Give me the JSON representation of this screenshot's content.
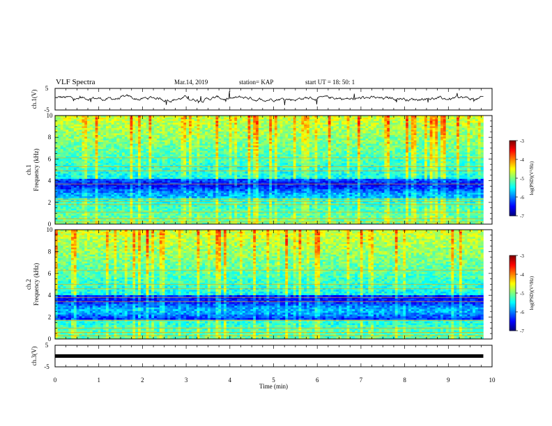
{
  "header": {
    "title": "VLF Spectra",
    "date": "Mar.14, 2019",
    "station": "station= KAP",
    "start": "start  UT =   18: 50: 1"
  },
  "chart_data": [
    {
      "id": "ch1-waveform",
      "type": "line",
      "ylabel": "ch.1(V)",
      "ylim": [
        -5,
        5
      ],
      "yticks": [
        5,
        -5
      ],
      "xlim": [
        0,
        10
      ],
      "x_range_data": [
        0,
        9.8
      ],
      "description_values": {
        "mean": 0.3,
        "typical_range": [
          -1.5,
          1.5
        ]
      }
    },
    {
      "id": "ch1-spectrogram",
      "type": "heatmap",
      "ylabel": "ch.1",
      "ylabel2": "Frequency  (kHz)",
      "ylim": [
        0,
        10
      ],
      "yticks": [
        0,
        2,
        4,
        6,
        8,
        10
      ],
      "xlim": [
        0,
        10
      ],
      "x_range_data": [
        0,
        9.8
      ],
      "colorbar": {
        "label": "log(PSD)(V²/Hz)",
        "range": [
          -7,
          -3
        ],
        "ticks": [
          -3,
          -4,
          -5,
          -6,
          -7
        ]
      },
      "quiet_band_khz": [
        2.4,
        4.2
      ],
      "lines_khz": [
        0.2,
        0.5,
        1.1,
        1.8,
        2.1,
        2.3,
        3.7,
        4.9,
        5.3,
        6.1
      ]
    },
    {
      "id": "ch2-spectrogram",
      "type": "heatmap",
      "ylabel": "ch.2",
      "ylabel2": "Frequency  (kHz)",
      "ylim": [
        0,
        10
      ],
      "yticks": [
        0,
        2,
        4,
        6,
        8,
        10
      ],
      "xlim": [
        0,
        10
      ],
      "x_range_data": [
        0,
        9.8
      ],
      "colorbar": {
        "label": "log(PSD)(V²/Hz)",
        "range": [
          -7,
          -3
        ],
        "ticks": [
          -3,
          -4,
          -5,
          -6,
          -7
        ]
      },
      "quiet_band_khz": [
        1.8,
        4.0
      ],
      "lines_khz": [
        0.3,
        0.6,
        1.0,
        1.7,
        3.4,
        3.8,
        4.6,
        5.0,
        6.3
      ]
    },
    {
      "id": "ch3-waveform",
      "type": "line",
      "ylabel": "ch.3(V)",
      "ylim": [
        -5,
        5
      ],
      "yticks": [
        5,
        -5
      ],
      "xlim": [
        0,
        10
      ],
      "x_range_data": [
        0,
        9.8
      ],
      "values_constant": 0,
      "xlabel": "Time  (min)",
      "xticks": [
        0,
        1,
        2,
        3,
        4,
        5,
        6,
        7,
        8,
        9,
        10
      ]
    }
  ],
  "colors": {
    "colormap": [
      "#00007f",
      "#0000ff",
      "#007fff",
      "#00ffff",
      "#7fff7f",
      "#ffff00",
      "#ff7f00",
      "#ff0000",
      "#7f0000"
    ]
  }
}
